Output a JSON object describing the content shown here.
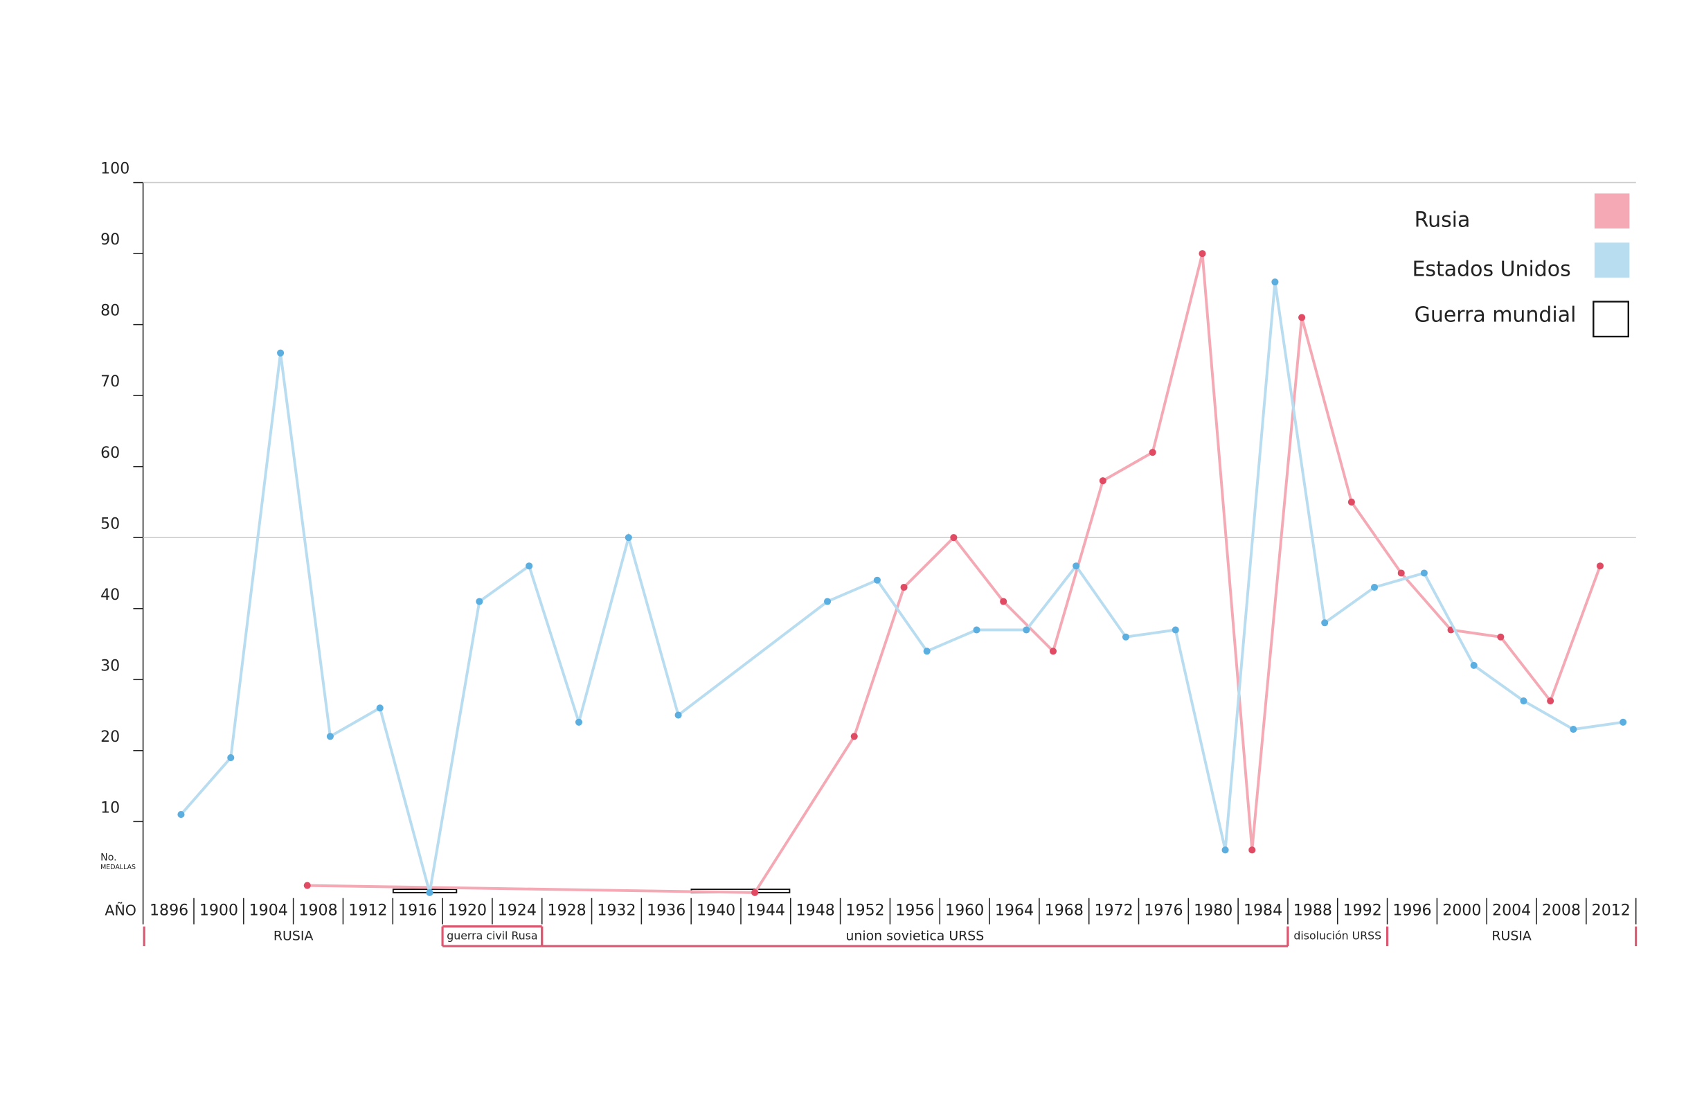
{
  "chart_data": {
    "type": "line",
    "y_label": [
      "No.",
      "MEDALLAS"
    ],
    "x_label": "AÑO",
    "xticks": [
      1896,
      1900,
      1904,
      1908,
      1912,
      1916,
      1920,
      1924,
      1928,
      1932,
      1936,
      1940,
      1944,
      1948,
      1952,
      1956,
      1960,
      1964,
      1968,
      1972,
      1976,
      1980,
      1984,
      1988,
      1992,
      1996,
      2000,
      2004,
      2008,
      2012
    ],
    "ylim": [
      0,
      100
    ],
    "yticks": [
      10,
      20,
      30,
      40,
      50,
      60,
      70,
      80,
      90,
      100
    ],
    "grid_values": [
      50,
      100
    ],
    "series": [
      {
        "name": "Rusia",
        "color": "#f4a9b5",
        "marker_color": "#e04b63",
        "x": [
          1908,
          1944,
          1952,
          1956,
          1960,
          1964,
          1968,
          1972,
          1976,
          1980,
          1984,
          1988,
          1992,
          1996,
          2000,
          2004,
          2008,
          2012
        ],
        "values": [
          1,
          0,
          22,
          43,
          50,
          41,
          34,
          58,
          62,
          90,
          6,
          81,
          55,
          45,
          37,
          36,
          27,
          46
        ]
      },
      {
        "name": "Estados Unidos",
        "color": "#b8dcf0",
        "marker_color": "#5aaee0",
        "x": [
          1896,
          1900,
          1904,
          1908,
          1912,
          1916,
          1920,
          1924,
          1928,
          1932,
          1936,
          1948,
          1952,
          1956,
          1960,
          1964,
          1968,
          1972,
          1976,
          1980,
          1984,
          1988,
          1992,
          1996,
          2000,
          2004,
          2008,
          2012
        ],
        "values": [
          11,
          19,
          76,
          22,
          26,
          0,
          41,
          46,
          24,
          50,
          25,
          41,
          44,
          34,
          37,
          37,
          46,
          36,
          37,
          6,
          86,
          38,
          43,
          45,
          32,
          27,
          23,
          24
        ]
      }
    ],
    "war_legend": "Guerra mundial",
    "periods": [
      "RUSIA",
      "guerra civil Rusa",
      "union sovietica URSS",
      "disolución URSS",
      "RUSIA"
    ]
  }
}
